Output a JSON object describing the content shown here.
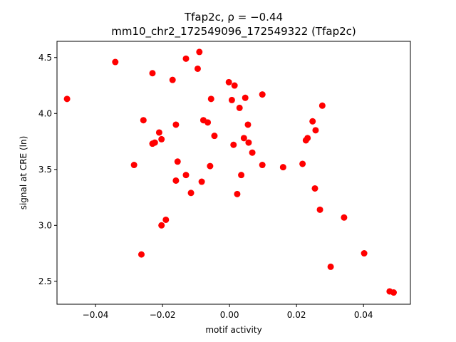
{
  "chart_data": {
    "type": "scatter",
    "title_line1": "Tfap2c, ρ = −0.44",
    "title_line2": "mm10_chr2_172549096_172549322 (Tfap2c)",
    "xlabel": "motif activity",
    "ylabel": "signal at CRE (ln)",
    "xlim": [
      -0.0515,
      0.054
    ],
    "ylim": [
      2.295,
      4.645
    ],
    "xticks": [
      -0.04,
      -0.02,
      0.0,
      0.02,
      0.04
    ],
    "xtick_labels": [
      "−0.04",
      "−0.02",
      "0.00",
      "0.02",
      "0.04"
    ],
    "yticks": [
      2.5,
      3.0,
      3.5,
      4.0,
      4.5
    ],
    "ytick_labels": [
      "2.5",
      "3.0",
      "3.5",
      "4.0",
      "4.5"
    ],
    "grid": false,
    "marker_color": "#ff0000",
    "points": [
      {
        "x": -0.0485,
        "y": 4.13
      },
      {
        "x": -0.0341,
        "y": 4.46
      },
      {
        "x": -0.0285,
        "y": 3.54
      },
      {
        "x": -0.0263,
        "y": 2.74
      },
      {
        "x": -0.0257,
        "y": 3.94
      },
      {
        "x": -0.023,
        "y": 4.36
      },
      {
        "x": -0.023,
        "y": 3.73
      },
      {
        "x": -0.0223,
        "y": 3.74
      },
      {
        "x": -0.021,
        "y": 3.83
      },
      {
        "x": -0.0203,
        "y": 3.77
      },
      {
        "x": -0.0203,
        "y": 3.0
      },
      {
        "x": -0.019,
        "y": 3.05
      },
      {
        "x": -0.017,
        "y": 4.3
      },
      {
        "x": -0.016,
        "y": 3.9
      },
      {
        "x": -0.016,
        "y": 3.4
      },
      {
        "x": -0.0155,
        "y": 3.57
      },
      {
        "x": -0.013,
        "y": 4.49
      },
      {
        "x": -0.013,
        "y": 3.45
      },
      {
        "x": -0.0115,
        "y": 3.29
      },
      {
        "x": -0.0095,
        "y": 4.4
      },
      {
        "x": -0.009,
        "y": 4.55
      },
      {
        "x": -0.0083,
        "y": 3.39
      },
      {
        "x": -0.0078,
        "y": 3.94
      },
      {
        "x": -0.0065,
        "y": 3.92
      },
      {
        "x": -0.0058,
        "y": 3.53
      },
      {
        "x": -0.0055,
        "y": 4.13
      },
      {
        "x": -0.0045,
        "y": 3.8
      },
      {
        "x": -0.0002,
        "y": 4.28
      },
      {
        "x": 0.0007,
        "y": 4.12
      },
      {
        "x": 0.0012,
        "y": 3.72
      },
      {
        "x": 0.0015,
        "y": 4.25
      },
      {
        "x": 0.0023,
        "y": 3.28
      },
      {
        "x": 0.003,
        "y": 4.05
      },
      {
        "x": 0.0035,
        "y": 3.45
      },
      {
        "x": 0.0043,
        "y": 3.78
      },
      {
        "x": 0.0047,
        "y": 4.14
      },
      {
        "x": 0.0055,
        "y": 3.9
      },
      {
        "x": 0.0057,
        "y": 3.74
      },
      {
        "x": 0.0068,
        "y": 3.65
      },
      {
        "x": 0.0098,
        "y": 4.17
      },
      {
        "x": 0.0098,
        "y": 3.54
      },
      {
        "x": 0.016,
        "y": 3.52
      },
      {
        "x": 0.0218,
        "y": 3.55
      },
      {
        "x": 0.0228,
        "y": 3.76
      },
      {
        "x": 0.0233,
        "y": 3.78
      },
      {
        "x": 0.0248,
        "y": 3.93
      },
      {
        "x": 0.0255,
        "y": 3.33
      },
      {
        "x": 0.0257,
        "y": 3.85
      },
      {
        "x": 0.027,
        "y": 3.14
      },
      {
        "x": 0.0277,
        "y": 4.07
      },
      {
        "x": 0.0302,
        "y": 2.63
      },
      {
        "x": 0.0342,
        "y": 3.07
      },
      {
        "x": 0.0402,
        "y": 2.75
      },
      {
        "x": 0.0478,
        "y": 2.41
      },
      {
        "x": 0.049,
        "y": 2.4
      }
    ]
  }
}
